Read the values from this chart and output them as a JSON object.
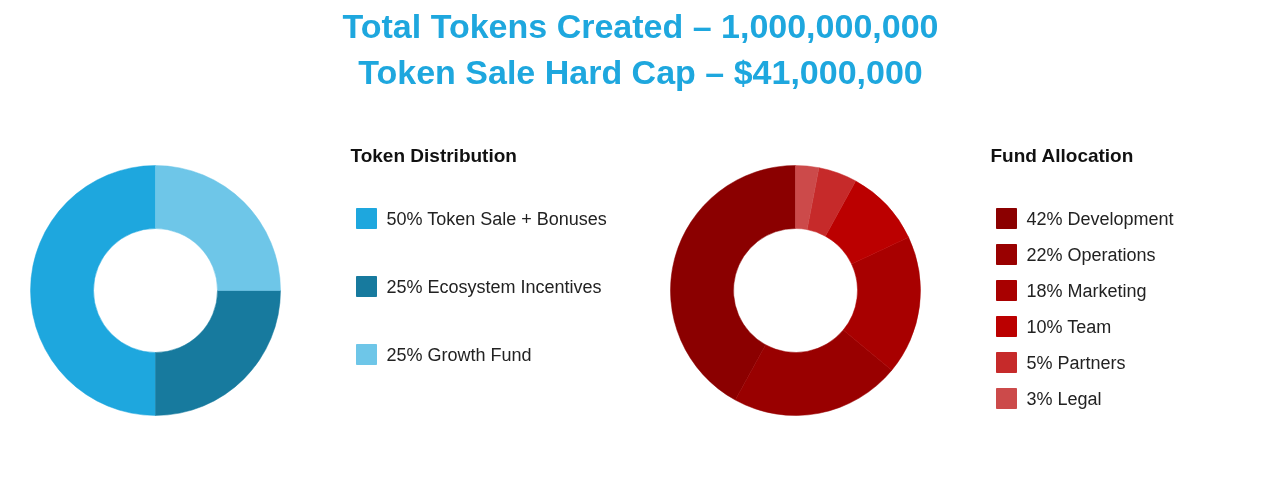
{
  "chart_data": [
    {
      "type": "other",
      "title": "Total Tokens Created – 1,000,000,000",
      "subtitle": "Token Sale Hard Cap – $41,000,000"
    },
    {
      "type": "donut",
      "title": "Token Distribution",
      "categories": [
        "Token Sale + Bonuses",
        "Ecosystem Incentives",
        "Growth Fund"
      ],
      "values": [
        50,
        25,
        25
      ],
      "value_labels": [
        "50%",
        "25%",
        "25%"
      ],
      "colors": [
        "#1ea7de",
        "#177a9e",
        "#6ec6e8"
      ],
      "legend": "right"
    },
    {
      "type": "donut",
      "title": "Fund Allocation",
      "categories": [
        "Development",
        "Operations",
        "Marketing",
        "Team",
        "Partners",
        "Legal"
      ],
      "values": [
        42,
        22,
        18,
        10,
        5,
        3
      ],
      "value_labels": [
        "42%",
        "22%",
        "18%",
        "10%",
        "5%",
        "3%"
      ],
      "colors": [
        "#8b0000",
        "#990000",
        "#a80000",
        "#bb0000",
        "#c62a2a",
        "#cc4a4a"
      ],
      "legend": "right"
    }
  ]
}
